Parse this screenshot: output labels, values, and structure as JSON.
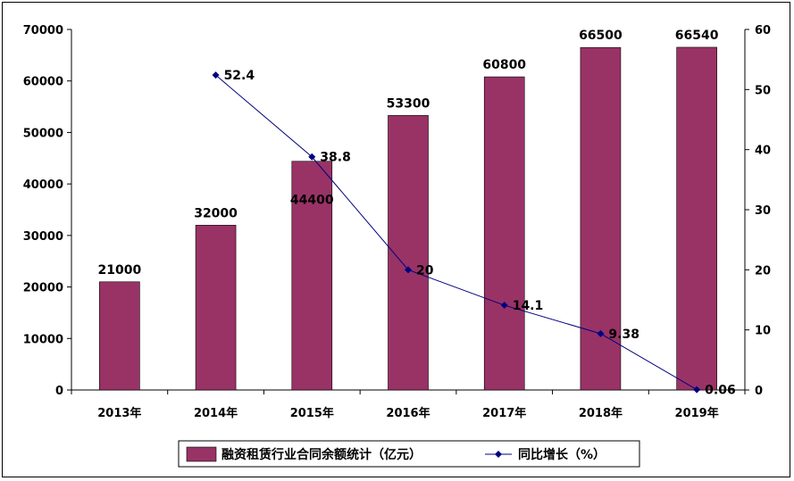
{
  "chart_data": {
    "type": "bar",
    "categories": [
      "2013年",
      "2014年",
      "2015年",
      "2016年",
      "2017年",
      "2018年",
      "2019年"
    ],
    "series": [
      {
        "name": "融资租赁行业合同余额统计（亿元）",
        "type": "bar",
        "axis": "left",
        "color": "#993366",
        "values": [
          21000,
          32000,
          44400,
          53300,
          60800,
          66500,
          66540
        ],
        "labels": [
          "21000",
          "32000",
          "44400",
          "53300",
          "60800",
          "66500",
          "66540"
        ]
      },
      {
        "name": "同比增长（%）",
        "type": "line",
        "axis": "right",
        "color": "#000080",
        "values": [
          null,
          52.4,
          38.8,
          20,
          14.1,
          9.38,
          0.06
        ],
        "labels": [
          "",
          "52.4",
          "38.8",
          "20",
          "14.1",
          "9.38",
          "0.06"
        ]
      }
    ],
    "y_left": {
      "min": 0,
      "max": 70000,
      "step": 10000,
      "ticks": [
        "0",
        "10000",
        "20000",
        "30000",
        "40000",
        "50000",
        "60000",
        "70000"
      ]
    },
    "y_right": {
      "min": 0,
      "max": 60,
      "step": 10,
      "ticks": [
        "0",
        "10",
        "20",
        "30",
        "40",
        "50",
        "60"
      ]
    },
    "grid": false,
    "legend": "bottom"
  }
}
